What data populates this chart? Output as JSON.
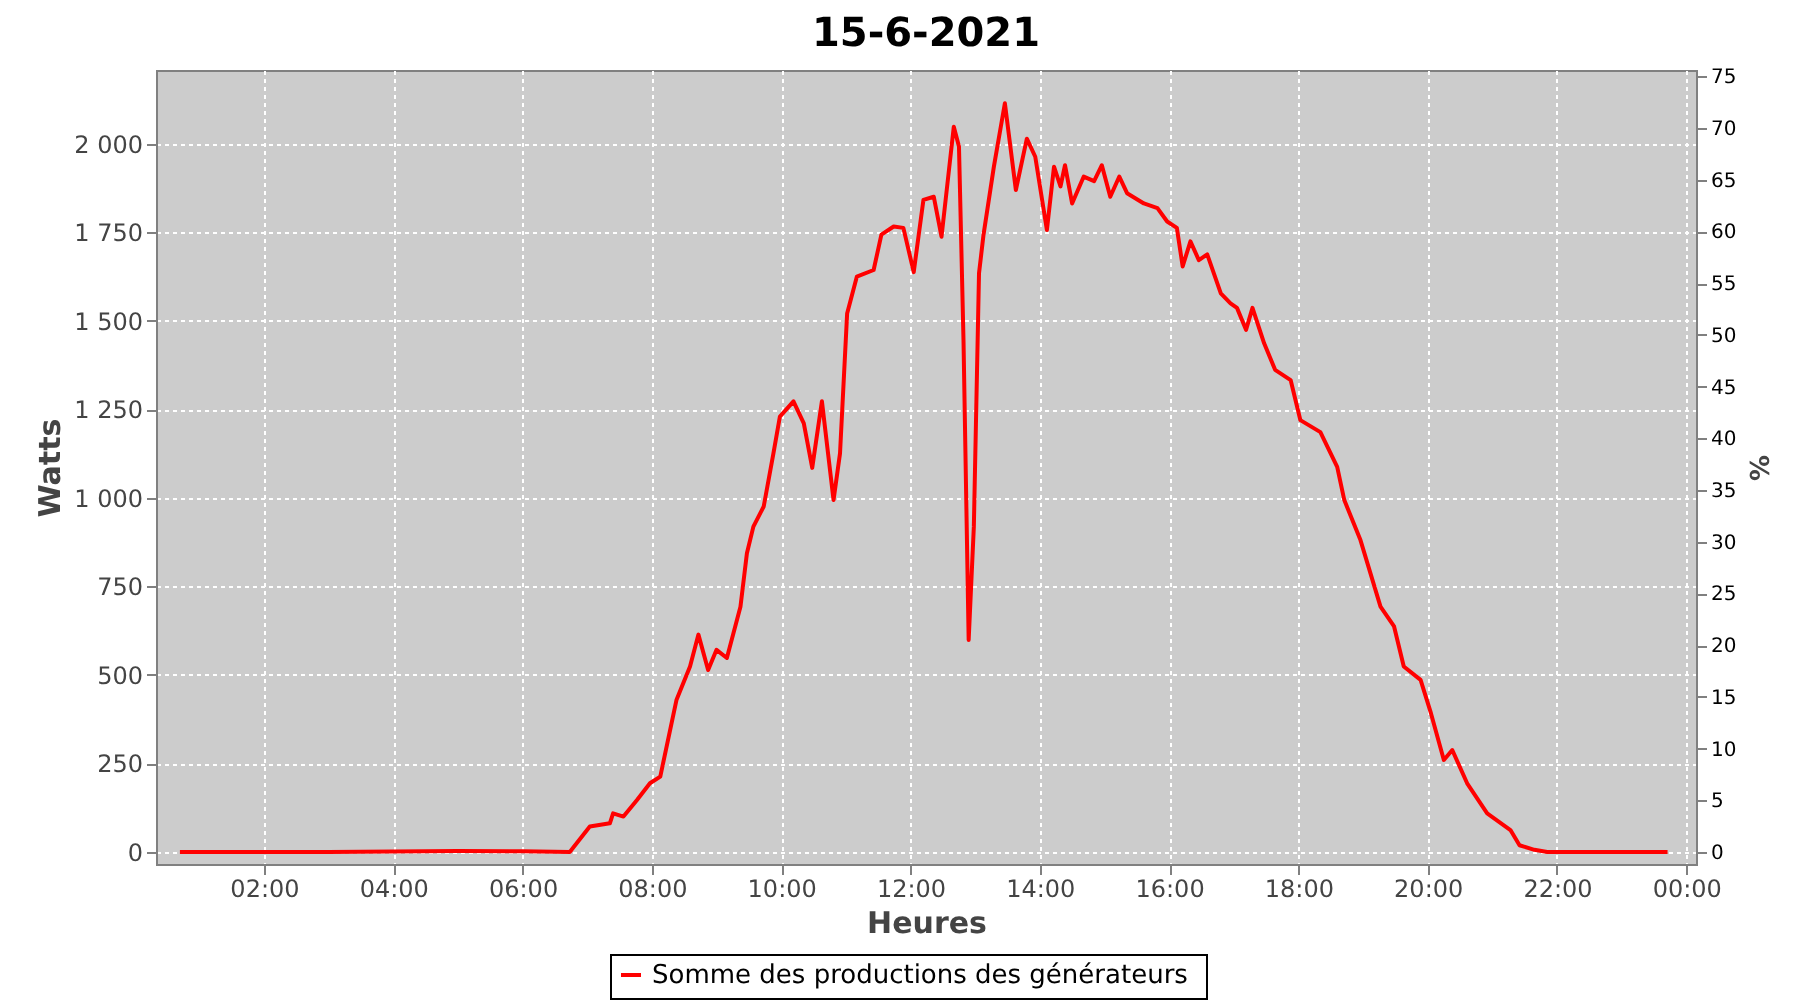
{
  "chart_data": {
    "type": "line",
    "title": "15-6-2021",
    "xlabel": "Heures",
    "ylabel": "Watts",
    "y2label": "%",
    "x": [
      0.7,
      3,
      5,
      6,
      6.73,
      7.04,
      7.35,
      7.4,
      7.56,
      7.77,
      7.97,
      8.13,
      8.38,
      8.59,
      8.72,
      8.87,
      9.0,
      9.16,
      9.37,
      9.47,
      9.57,
      9.73,
      9.88,
      9.98,
      10.19,
      10.35,
      10.48,
      10.63,
      10.81,
      10.91,
      11.02,
      11.17,
      11.43,
      11.55,
      11.74,
      11.89,
      12.05,
      12.2,
      12.36,
      12.48,
      12.67,
      12.75,
      12.82,
      12.9,
      12.98,
      13.06,
      13.13,
      13.29,
      13.46,
      13.63,
      13.8,
      13.93,
      14.11,
      14.22,
      14.32,
      14.39,
      14.5,
      14.68,
      14.84,
      14.96,
      15.09,
      15.23,
      15.35,
      15.61,
      15.82,
      15.97,
      16.12,
      16.21,
      16.33,
      16.46,
      16.59,
      16.8,
      16.95,
      17.05,
      17.19,
      17.29,
      17.47,
      17.64,
      17.88,
      18.03,
      18.34,
      18.6,
      18.71,
      18.96,
      19.27,
      19.48,
      19.63,
      19.89,
      20.05,
      20.25,
      20.38,
      20.61,
      20.92,
      21.28,
      21.42,
      21.65,
      21.85,
      23.71
    ],
    "series": [
      {
        "name": "Somme des productions des  générateurs",
        "color": "#ff0000",
        "values": [
          0,
          0,
          3,
          2,
          0,
          72,
          81,
          109,
          100,
          147,
          194,
          213,
          429,
          524,
          614,
          514,
          571,
          548,
          693,
          844,
          919,
          976,
          1126,
          1230,
          1273,
          1211,
          1085,
          1273,
          994,
          1126,
          1521,
          1625,
          1644,
          1744,
          1767,
          1763,
          1638,
          1842,
          1851,
          1738,
          2049,
          1993,
          1446,
          599,
          919,
          1635,
          1744,
          1936,
          2115,
          1870,
          2015,
          1964,
          1757,
          1936,
          1880,
          1940,
          1832,
          1908,
          1895,
          1940,
          1851,
          1908,
          1861,
          1832,
          1819,
          1781,
          1763,
          1654,
          1725,
          1672,
          1688,
          1578,
          1550,
          1537,
          1475,
          1537,
          1437,
          1362,
          1333,
          1220,
          1186,
          1088,
          994,
          881,
          693,
          637,
          524,
          486,
          392,
          260,
          288,
          194,
          109,
          62,
          19,
          6,
          0,
          0
        ]
      }
    ],
    "xlim": [
      0.33,
      24.15
    ],
    "xticks": [
      {
        "value": 2,
        "label": "02:00"
      },
      {
        "value": 4,
        "label": "04:00"
      },
      {
        "value": 6,
        "label": "06:00"
      },
      {
        "value": 8,
        "label": "08:00"
      },
      {
        "value": 10,
        "label": "10:00"
      },
      {
        "value": 12,
        "label": "12:00"
      },
      {
        "value": 14,
        "label": "14:00"
      },
      {
        "value": 16,
        "label": "16:00"
      },
      {
        "value": 18,
        "label": "18:00"
      },
      {
        "value": 20,
        "label": "20:00"
      },
      {
        "value": 22,
        "label": "22:00"
      },
      {
        "value": 24,
        "label": "00:00"
      }
    ],
    "ylim": [
      -34,
      2209
    ],
    "yticks": [
      0,
      250,
      500,
      750,
      {
        "value": 1000,
        "label": "1 000"
      },
      {
        "value": 1250,
        "label": "1 250"
      },
      {
        "value": 1500,
        "label": "1 500"
      },
      {
        "value": 1750,
        "label": "1 750"
      },
      {
        "value": 2000,
        "label": "2 000"
      }
    ],
    "y2lim": [
      -1.16,
      75.6
    ],
    "y2ticks": [
      0,
      5,
      10,
      15,
      20,
      25,
      30,
      35,
      40,
      45,
      50,
      55,
      60,
      65,
      70,
      75
    ],
    "grid": true,
    "legend": "bottom"
  }
}
